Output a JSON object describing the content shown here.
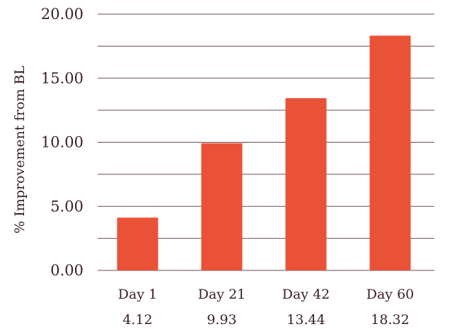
{
  "chart_data": {
    "type": "bar",
    "title": "",
    "xlabel": "",
    "ylabel": "% Improvement from BL",
    "categories": [
      "Day 1",
      "Day 21",
      "Day 42",
      "Day 60"
    ],
    "values": [
      4.12,
      9.93,
      13.44,
      18.32
    ],
    "value_labels": [
      "4.12",
      "9.93",
      "13.44",
      "18.32"
    ],
    "ylim": [
      0,
      20
    ],
    "yticks": [
      0,
      5,
      10,
      15,
      20
    ],
    "ytick_labels": [
      "0.00",
      "5.00",
      "10.00",
      "15.00",
      "20.00"
    ],
    "grid": true,
    "bar_color": "#ea5237",
    "grid_color": "#6b4a50",
    "text_color": "#3a1f26"
  }
}
